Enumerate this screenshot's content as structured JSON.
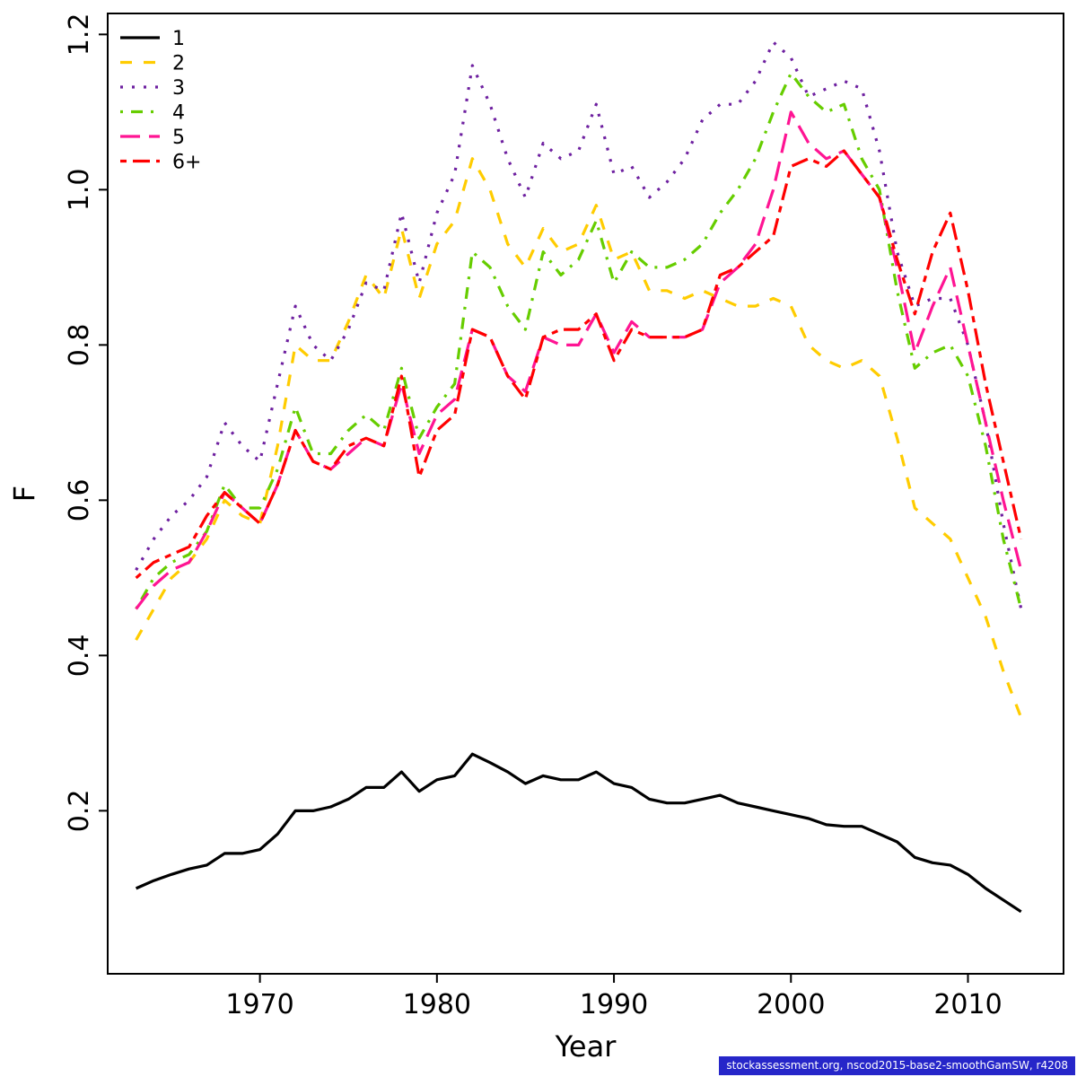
{
  "figure": {
    "background": "#ffffff"
  },
  "footer": {
    "text": "stockassessment.org, nscod2015-base2-smoothGamSW, r4208",
    "background": "#2626c9",
    "color": "#ffffff"
  },
  "chart_data": {
    "type": "line",
    "title": "",
    "xlabel": "Year",
    "ylabel": "F",
    "xlim": [
      1961.4,
      2015.4
    ],
    "ylim": [
      -0.01,
      1.227
    ],
    "x_ticks": [
      1970,
      1980,
      1990,
      2000,
      2010
    ],
    "y_ticks": [
      0.2,
      0.4,
      0.6,
      0.8,
      1.0,
      1.2
    ],
    "grid": false,
    "legend_position": "top-left",
    "x": [
      1963,
      1964,
      1965,
      1966,
      1967,
      1968,
      1969,
      1970,
      1971,
      1972,
      1973,
      1974,
      1975,
      1976,
      1977,
      1978,
      1979,
      1980,
      1981,
      1982,
      1983,
      1984,
      1985,
      1986,
      1987,
      1988,
      1989,
      1990,
      1991,
      1992,
      1993,
      1994,
      1995,
      1996,
      1997,
      1998,
      1999,
      2000,
      2001,
      2002,
      2003,
      2004,
      2005,
      2006,
      2007,
      2008,
      2009,
      2010,
      2011,
      2012,
      2013
    ],
    "series": [
      {
        "name": "1",
        "color": "#000000",
        "linetype": "solid",
        "values": [
          0.1,
          0.11,
          0.118,
          0.125,
          0.13,
          0.145,
          0.145,
          0.15,
          0.17,
          0.2,
          0.2,
          0.205,
          0.215,
          0.23,
          0.23,
          0.25,
          0.225,
          0.24,
          0.245,
          0.273,
          0.262,
          0.25,
          0.235,
          0.245,
          0.24,
          0.24,
          0.25,
          0.235,
          0.23,
          0.215,
          0.21,
          0.21,
          0.215,
          0.22,
          0.21,
          0.205,
          0.2,
          0.195,
          0.19,
          0.182,
          0.18,
          0.18,
          0.17,
          0.16,
          0.14,
          0.133,
          0.13,
          0.118,
          0.1,
          0.085,
          0.07
        ]
      },
      {
        "name": "2",
        "color": "#ffcc00",
        "linetype": "dashed",
        "values": [
          0.42,
          0.46,
          0.5,
          0.52,
          0.55,
          0.6,
          0.58,
          0.57,
          0.67,
          0.8,
          0.78,
          0.78,
          0.83,
          0.89,
          0.86,
          0.95,
          0.86,
          0.93,
          0.96,
          1.04,
          1.0,
          0.93,
          0.9,
          0.95,
          0.92,
          0.93,
          0.98,
          0.91,
          0.92,
          0.87,
          0.87,
          0.86,
          0.87,
          0.86,
          0.85,
          0.85,
          0.86,
          0.85,
          0.8,
          0.78,
          0.77,
          0.78,
          0.76,
          0.68,
          0.59,
          0.57,
          0.55,
          0.5,
          0.45,
          0.38,
          0.32
        ]
      },
      {
        "name": "3",
        "color": "#6e20a0",
        "linetype": "dotted",
        "values": [
          0.51,
          0.55,
          0.58,
          0.6,
          0.63,
          0.7,
          0.67,
          0.65,
          0.75,
          0.85,
          0.8,
          0.78,
          0.82,
          0.88,
          0.87,
          0.97,
          0.88,
          0.97,
          1.02,
          1.16,
          1.11,
          1.04,
          0.99,
          1.06,
          1.04,
          1.05,
          1.11,
          1.02,
          1.03,
          0.99,
          1.01,
          1.04,
          1.09,
          1.11,
          1.11,
          1.14,
          1.19,
          1.17,
          1.12,
          1.13,
          1.14,
          1.13,
          1.05,
          0.92,
          0.85,
          0.86,
          0.86,
          0.8,
          0.7,
          0.57,
          0.46
        ]
      },
      {
        "name": "4",
        "color": "#66cd00",
        "linetype": "dotdash",
        "values": [
          0.46,
          0.5,
          0.52,
          0.53,
          0.56,
          0.62,
          0.59,
          0.59,
          0.64,
          0.72,
          0.66,
          0.66,
          0.69,
          0.71,
          0.69,
          0.77,
          0.68,
          0.72,
          0.75,
          0.92,
          0.9,
          0.85,
          0.82,
          0.92,
          0.89,
          0.91,
          0.96,
          0.88,
          0.92,
          0.9,
          0.9,
          0.91,
          0.93,
          0.97,
          1.0,
          1.04,
          1.1,
          1.15,
          1.12,
          1.1,
          1.11,
          1.04,
          1.0,
          0.87,
          0.77,
          0.79,
          0.8,
          0.76,
          0.67,
          0.55,
          0.46
        ]
      },
      {
        "name": "5",
        "color": "#ff1493",
        "linetype": "longdash",
        "values": [
          0.46,
          0.49,
          0.51,
          0.52,
          0.56,
          0.61,
          0.59,
          0.57,
          0.62,
          0.69,
          0.65,
          0.64,
          0.66,
          0.68,
          0.67,
          0.75,
          0.66,
          0.71,
          0.73,
          0.82,
          0.81,
          0.76,
          0.74,
          0.81,
          0.8,
          0.8,
          0.84,
          0.79,
          0.83,
          0.81,
          0.81,
          0.81,
          0.82,
          0.88,
          0.9,
          0.93,
          1.0,
          1.1,
          1.06,
          1.04,
          1.05,
          1.02,
          0.99,
          0.9,
          0.79,
          0.85,
          0.9,
          0.8,
          0.7,
          0.6,
          0.51
        ]
      },
      {
        "name": "6+",
        "color": "#ff0000",
        "linetype": "twodash",
        "values": [
          0.5,
          0.52,
          0.53,
          0.54,
          0.58,
          0.61,
          0.59,
          0.57,
          0.62,
          0.69,
          0.65,
          0.64,
          0.67,
          0.68,
          0.67,
          0.76,
          0.63,
          0.69,
          0.71,
          0.82,
          0.81,
          0.76,
          0.73,
          0.81,
          0.82,
          0.82,
          0.84,
          0.78,
          0.82,
          0.81,
          0.81,
          0.81,
          0.82,
          0.89,
          0.9,
          0.92,
          0.94,
          1.03,
          1.04,
          1.03,
          1.05,
          1.02,
          0.99,
          0.91,
          0.84,
          0.92,
          0.97,
          0.87,
          0.75,
          0.65,
          0.55
        ]
      }
    ]
  }
}
